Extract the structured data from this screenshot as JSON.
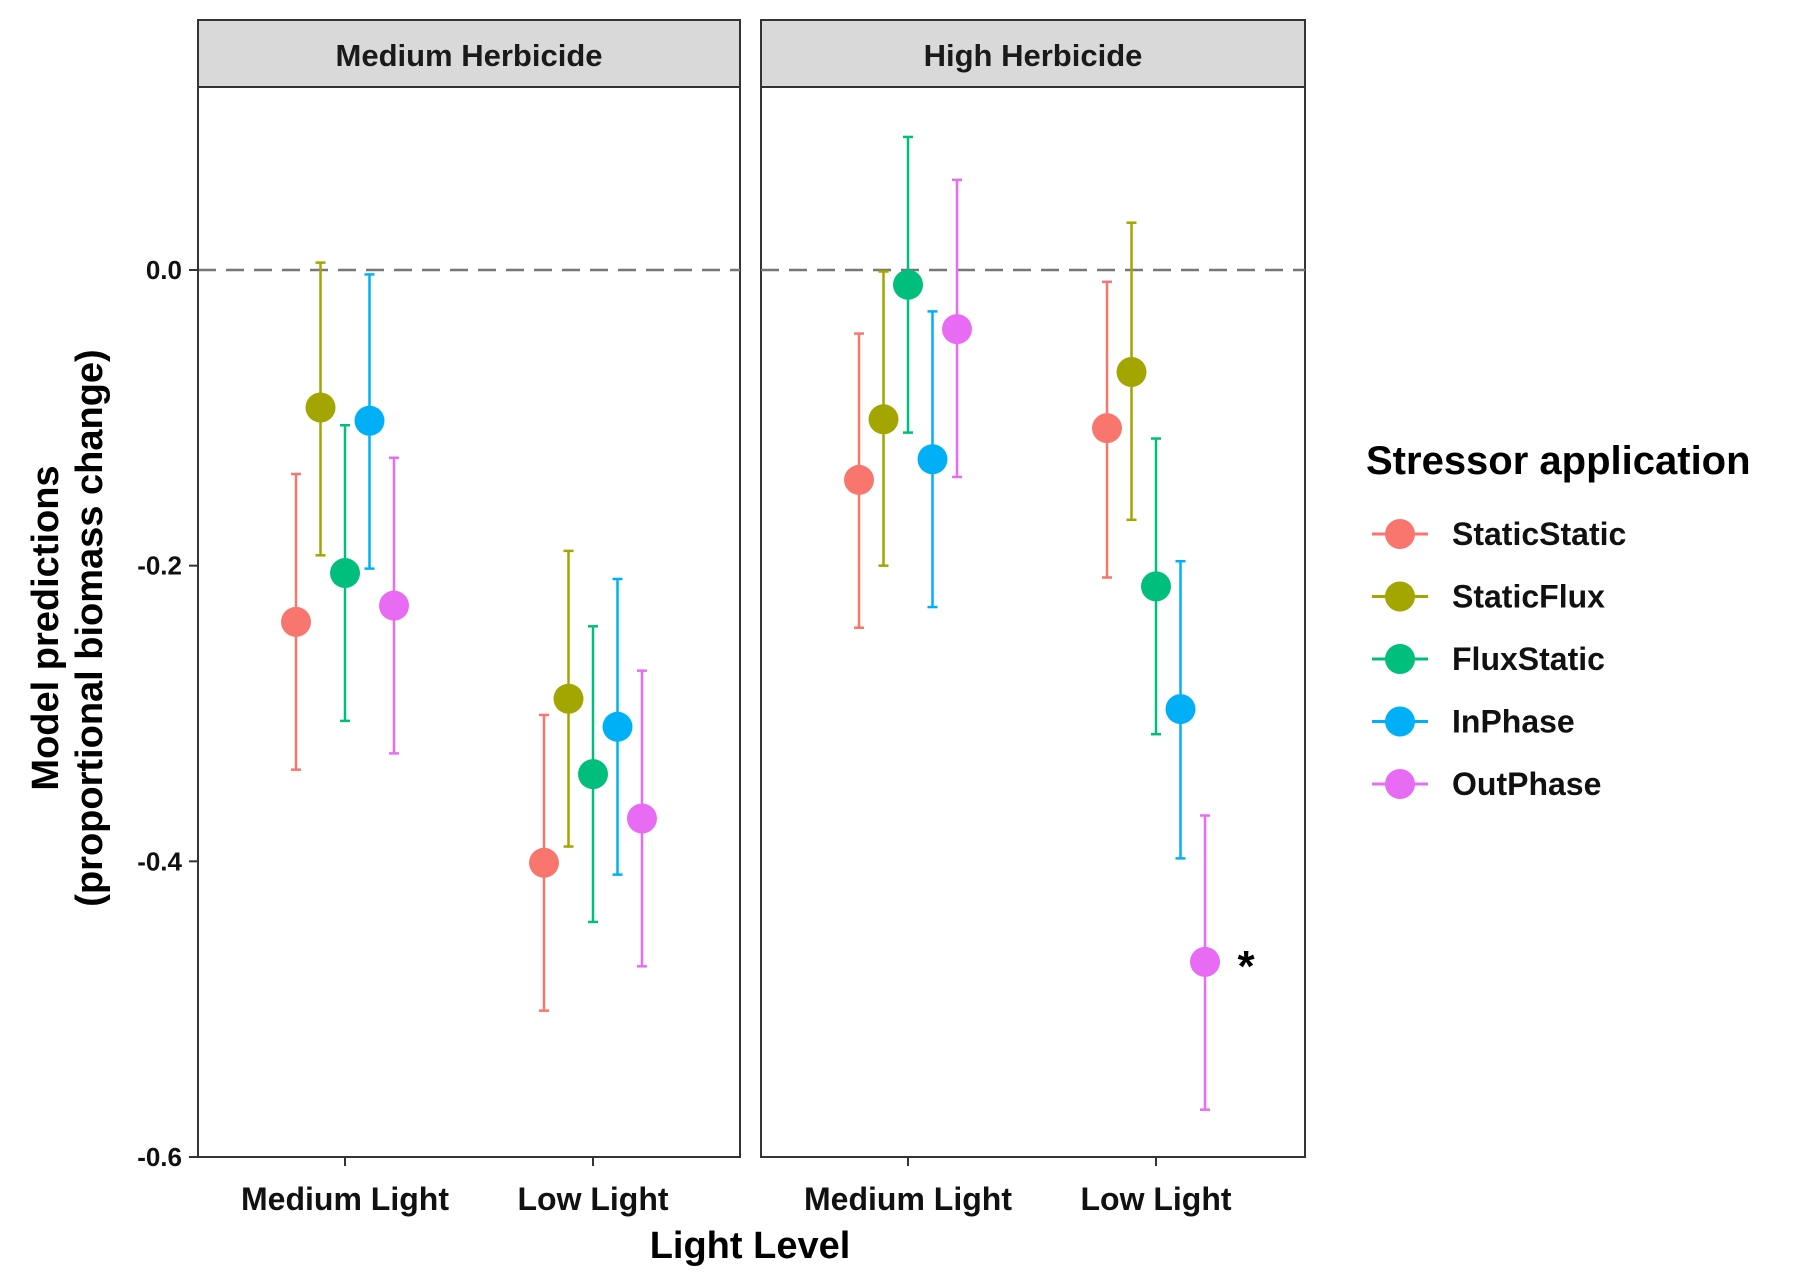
{
  "chart_data": {
    "type": "scatter",
    "subtype": "point-range (faceted)",
    "xlabel": "Light Level",
    "ylabel": [
      "Model predictions",
      "(proportional biomass change)"
    ],
    "ylim": [
      -0.6,
      0.12
    ],
    "yticks": [
      0.0,
      -0.2,
      -0.4,
      -0.6
    ],
    "ytick_labels": [
      "0.0",
      "-0.2",
      "-0.4",
      "-0.6"
    ],
    "reference_line": {
      "y": 0.0,
      "style": "dashed"
    },
    "grid": false,
    "categories": [
      "Medium Light",
      "Low Light"
    ],
    "legend": {
      "title": "Stressor application",
      "placement": "right"
    },
    "series": [
      {
        "name": "StaticStatic",
        "color": "#F8766D"
      },
      {
        "name": "StaticFlux",
        "color": "#A3A500"
      },
      {
        "name": "FluxStatic",
        "color": "#00BF7D"
      },
      {
        "name": "InPhase",
        "color": "#00B0F6"
      },
      {
        "name": "OutPhase",
        "color": "#E76BF3"
      }
    ],
    "facets": [
      {
        "title": "Medium Herbicide",
        "points": [
          {
            "series": "StaticStatic",
            "category": "Medium Light",
            "y": -0.238,
            "ymin": -0.338,
            "ymax": -0.138
          },
          {
            "series": "StaticFlux",
            "category": "Medium Light",
            "y": -0.093,
            "ymin": -0.193,
            "ymax": 0.005
          },
          {
            "series": "FluxStatic",
            "category": "Medium Light",
            "y": -0.205,
            "ymin": -0.305,
            "ymax": -0.105
          },
          {
            "series": "InPhase",
            "category": "Medium Light",
            "y": -0.102,
            "ymin": -0.202,
            "ymax": -0.003
          },
          {
            "series": "OutPhase",
            "category": "Medium Light",
            "y": -0.227,
            "ymin": -0.327,
            "ymax": -0.127
          },
          {
            "series": "StaticStatic",
            "category": "Low Light",
            "y": -0.401,
            "ymin": -0.501,
            "ymax": -0.301
          },
          {
            "series": "StaticFlux",
            "category": "Low Light",
            "y": -0.29,
            "ymin": -0.39,
            "ymax": -0.19
          },
          {
            "series": "FluxStatic",
            "category": "Low Light",
            "y": -0.341,
            "ymin": -0.441,
            "ymax": -0.241
          },
          {
            "series": "InPhase",
            "category": "Low Light",
            "y": -0.309,
            "ymin": -0.409,
            "ymax": -0.209
          },
          {
            "series": "OutPhase",
            "category": "Low Light",
            "y": -0.371,
            "ymin": -0.471,
            "ymax": -0.271
          }
        ]
      },
      {
        "title": "High Herbicide",
        "points": [
          {
            "series": "StaticStatic",
            "category": "Medium Light",
            "y": -0.142,
            "ymin": -0.242,
            "ymax": -0.043
          },
          {
            "series": "StaticFlux",
            "category": "Medium Light",
            "y": -0.101,
            "ymin": -0.2,
            "ymax": -0.001
          },
          {
            "series": "FluxStatic",
            "category": "Medium Light",
            "y": -0.01,
            "ymin": -0.11,
            "ymax": 0.09
          },
          {
            "series": "InPhase",
            "category": "Medium Light",
            "y": -0.128,
            "ymin": -0.228,
            "ymax": -0.028
          },
          {
            "series": "OutPhase",
            "category": "Medium Light",
            "y": -0.04,
            "ymin": -0.14,
            "ymax": 0.061
          },
          {
            "series": "StaticStatic",
            "category": "Low Light",
            "y": -0.107,
            "ymin": -0.208,
            "ymax": -0.008
          },
          {
            "series": "StaticFlux",
            "category": "Low Light",
            "y": -0.069,
            "ymin": -0.169,
            "ymax": 0.032
          },
          {
            "series": "FluxStatic",
            "category": "Low Light",
            "y": -0.214,
            "ymin": -0.314,
            "ymax": -0.114
          },
          {
            "series": "InPhase",
            "category": "Low Light",
            "y": -0.297,
            "ymin": -0.398,
            "ymax": -0.197
          },
          {
            "series": "OutPhase",
            "category": "Low Light",
            "y": -0.468,
            "ymin": -0.568,
            "ymax": -0.369,
            "annotation": "*"
          }
        ]
      }
    ]
  }
}
